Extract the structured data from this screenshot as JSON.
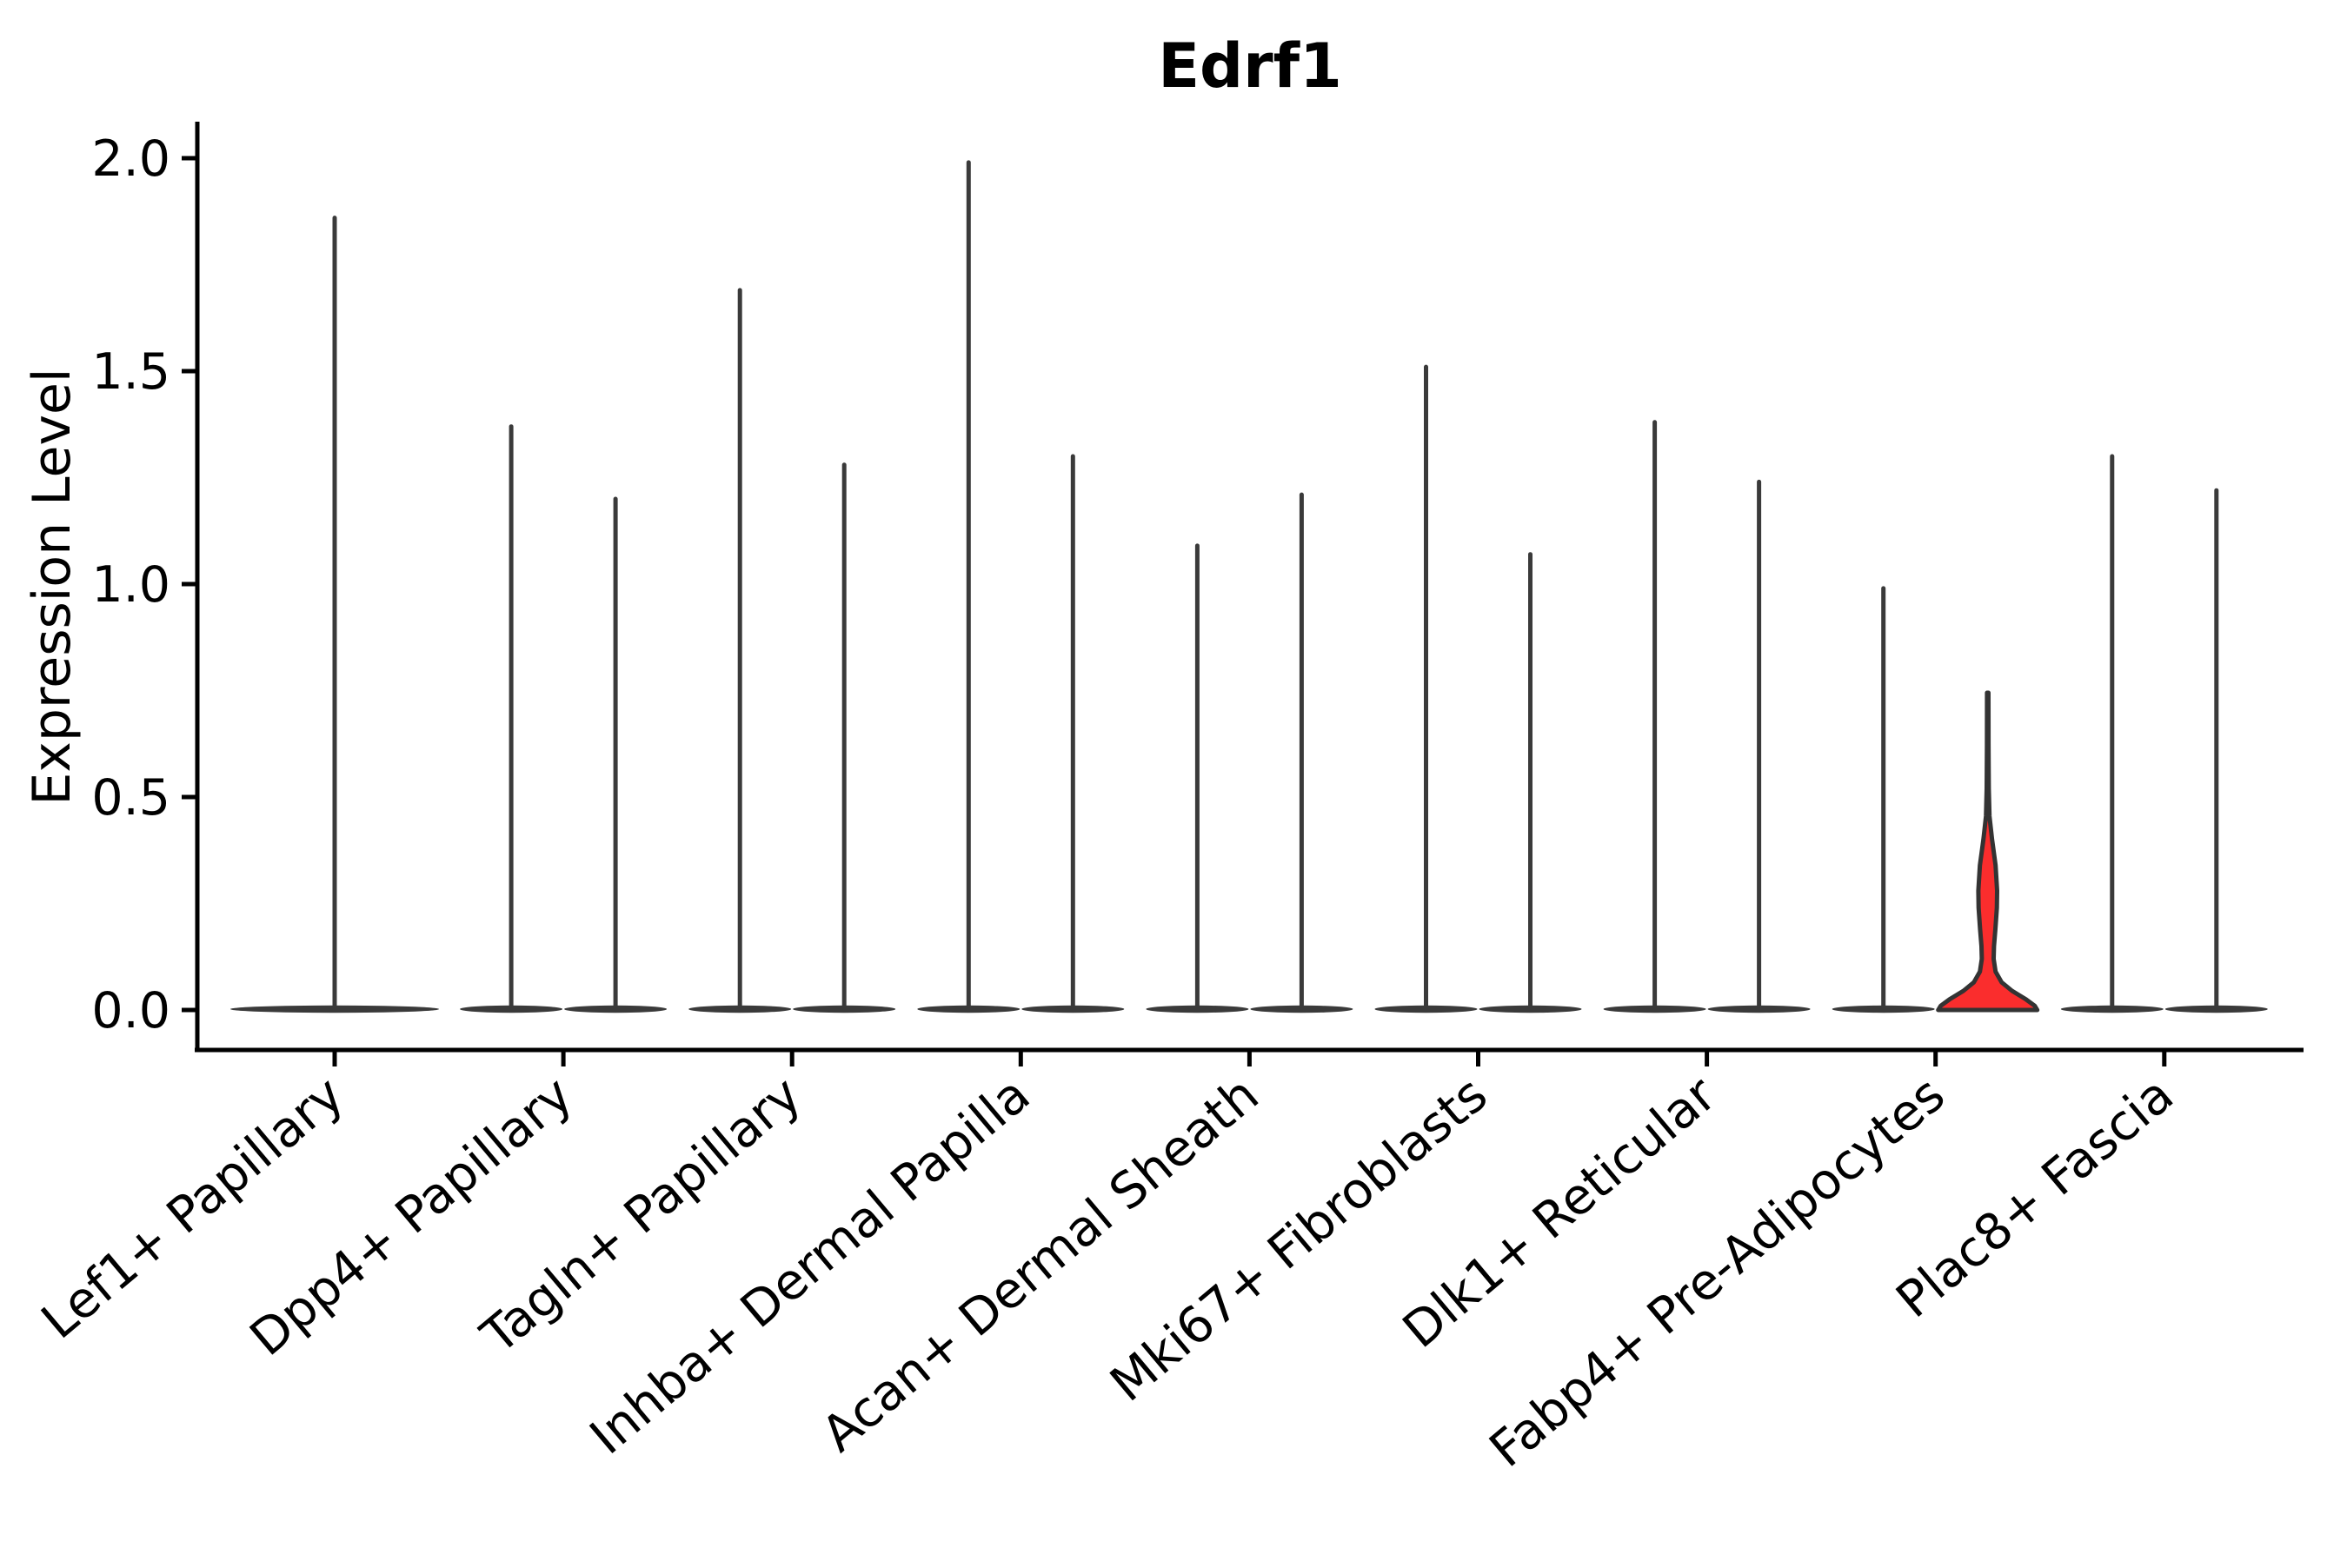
{
  "chart_data": {
    "type": "violin",
    "title": "Edrf1",
    "ylabel": "Expression Level",
    "xlabel": "",
    "ylim": [
      0,
      2.05
    ],
    "grid": false,
    "legend_position": "none",
    "yticks": [
      {
        "label": "0.0",
        "value": 0.0
      },
      {
        "label": "0.5",
        "value": 0.5
      },
      {
        "label": "1.0",
        "value": 1.0
      },
      {
        "label": "1.5",
        "value": 1.5
      },
      {
        "label": "2.0",
        "value": 2.0
      }
    ],
    "colors": {
      "violin": "#3a3a3a",
      "highlight_fill": "#fa2d2d",
      "highlight_stroke": "#333333",
      "axis": "#000000"
    },
    "categories": [
      {
        "label": "Lef1+ Papillary",
        "violins": [
          {
            "shape": "spike",
            "max": 1.86,
            "offset": 0,
            "flat_halfwidth": 120
          }
        ]
      },
      {
        "label": "Dpp4+ Papillary",
        "violins": [
          {
            "shape": "spike",
            "max": 1.37,
            "offset": -60,
            "flat_halfwidth": 59
          },
          {
            "shape": "spike",
            "max": 1.2,
            "offset": 60,
            "flat_halfwidth": 59
          }
        ]
      },
      {
        "label": "Tagln+ Papillary",
        "violins": [
          {
            "shape": "spike",
            "max": 1.69,
            "offset": -60,
            "flat_halfwidth": 59
          },
          {
            "shape": "spike",
            "max": 1.28,
            "offset": 60,
            "flat_halfwidth": 59
          }
        ]
      },
      {
        "label": "Inhba+ Dermal Papilla",
        "violins": [
          {
            "shape": "spike",
            "max": 1.99,
            "offset": -60,
            "flat_halfwidth": 59
          },
          {
            "shape": "spike",
            "max": 1.3,
            "offset": 60,
            "flat_halfwidth": 59
          }
        ]
      },
      {
        "label": "Acan+ Dermal Sheath",
        "violins": [
          {
            "shape": "spike",
            "max": 1.09,
            "offset": -60,
            "flat_halfwidth": 59
          },
          {
            "shape": "spike",
            "max": 1.21,
            "offset": 60,
            "flat_halfwidth": 59
          }
        ]
      },
      {
        "label": "Mki67+ Fibroblasts",
        "violins": [
          {
            "shape": "spike",
            "max": 1.51,
            "offset": -60,
            "flat_halfwidth": 59
          },
          {
            "shape": "spike",
            "max": 1.07,
            "offset": 60,
            "flat_halfwidth": 59
          }
        ]
      },
      {
        "label": "Dlk1+ Reticular",
        "violins": [
          {
            "shape": "spike",
            "max": 1.38,
            "offset": -60,
            "flat_halfwidth": 59
          },
          {
            "shape": "spike",
            "max": 1.24,
            "offset": 60,
            "flat_halfwidth": 59
          }
        ]
      },
      {
        "label": "Fabp4+ Pre-Adipocytes",
        "violins": [
          {
            "shape": "spike",
            "max": 0.99,
            "offset": -60,
            "flat_halfwidth": 59
          },
          {
            "shape": "density",
            "max": 0.74,
            "offset": 60,
            "fill": "#fa2d2d",
            "profile": [
              [
                0.745,
                0.8
              ],
              [
                0.62,
                0.9
              ],
              [
                0.52,
                1.2
              ],
              [
                0.455,
                2.0
              ],
              [
                0.4,
                5
              ],
              [
                0.34,
                9
              ],
              [
                0.28,
                10.8
              ],
              [
                0.24,
                10.5
              ],
              [
                0.19,
                8.8
              ],
              [
                0.15,
                7.2
              ],
              [
                0.12,
                6.8
              ],
              [
                0.09,
                9
              ],
              [
                0.065,
                16
              ],
              [
                0.045,
                28
              ],
              [
                0.025,
                44
              ],
              [
                0.01,
                54
              ],
              [
                0.0,
                57
              ]
            ]
          }
        ]
      },
      {
        "label": "Plac8+ Fascia",
        "violins": [
          {
            "shape": "spike",
            "max": 1.3,
            "offset": -60,
            "flat_halfwidth": 59
          },
          {
            "shape": "spike",
            "max": 1.22,
            "offset": 60,
            "flat_halfwidth": 59
          }
        ]
      }
    ]
  }
}
